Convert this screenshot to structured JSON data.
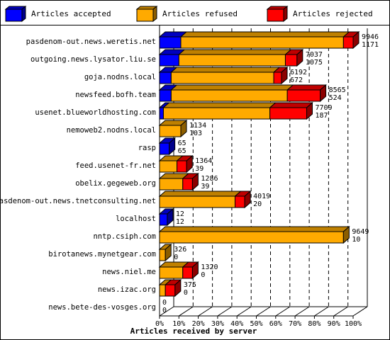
{
  "chart_data": {
    "type": "bar",
    "stacked": true,
    "orientation": "horizontal",
    "xlabel": "Articles received by server",
    "x_ticks": [
      "0%",
      "10%",
      "20%",
      "30%",
      "40%",
      "50%",
      "60%",
      "70%",
      "80%",
      "90%",
      "100%"
    ],
    "xlim": [
      0,
      100
    ],
    "legend_position": "top",
    "series": [
      {
        "name": "Articles accepted",
        "color": "#0000ff"
      },
      {
        "name": "Articles refused",
        "color": "#ffaa00"
      },
      {
        "name": "Articles rejected",
        "color": "#ff0000"
      }
    ],
    "rows": [
      {
        "server": "pasdenom-out.news.weretis.net",
        "total": "9946",
        "second": "1171",
        "accepted": 11,
        "refused": 84,
        "rejected": 5
      },
      {
        "server": "outgoing.news.lysator.liu.se",
        "total": "7037",
        "second": "1075",
        "accepted": 10,
        "refused": 55,
        "rejected": 6
      },
      {
        "server": "goja.nodns.local",
        "total": "6192",
        "second": "672",
        "accepted": 6,
        "refused": 53,
        "rejected": 4
      },
      {
        "server": "newsfeed.bofh.team",
        "total": "8565",
        "second": "524",
        "accepted": 6,
        "refused": 60,
        "rejected": 17
      },
      {
        "server": "usenet.blueworldhosting.com",
        "total": "7709",
        "second": "187",
        "accepted": 2,
        "refused": 55,
        "rejected": 19
      },
      {
        "server": "nemoweb2.nodns.local",
        "total": "1134",
        "second": "103",
        "accepted": 0,
        "refused": 11,
        "rejected": 0
      },
      {
        "server": "rasp",
        "total": "65",
        "second": "65",
        "accepted": 5,
        "refused": 0,
        "rejected": 0
      },
      {
        "server": "feed.usenet-fr.net",
        "total": "1364",
        "second": "39",
        "accepted": 0,
        "refused": 9,
        "rejected": 5
      },
      {
        "server": "obelix.gegeweb.org",
        "total": "1286",
        "second": "39",
        "accepted": 0,
        "refused": 12,
        "rejected": 5
      },
      {
        "server": "pasdenom-out.news.tnetconsulting.net",
        "total": "4019",
        "second": "20",
        "accepted": 0,
        "refused": 39,
        "rejected": 5
      },
      {
        "server": "localhost",
        "total": "12",
        "second": "12",
        "accepted": 4,
        "refused": 0,
        "rejected": 0
      },
      {
        "server": "nntp.csiph.com",
        "total": "9649",
        "second": "10",
        "accepted": 0,
        "refused": 95,
        "rejected": 0
      },
      {
        "server": "birotanews.mynetgear.com",
        "total": "326",
        "second": "0",
        "accepted": 0,
        "refused": 3,
        "rejected": 0
      },
      {
        "server": "news.niel.me",
        "total": "1320",
        "second": "0",
        "accepted": 0,
        "refused": 12,
        "rejected": 5
      },
      {
        "server": "news.izac.org",
        "total": "375",
        "second": "0",
        "accepted": 0,
        "refused": 3,
        "rejected": 5
      },
      {
        "server": "news.bete-des-vosges.org",
        "total": "0",
        "second": "0",
        "accepted": 0,
        "refused": 0,
        "rejected": 0
      }
    ]
  }
}
